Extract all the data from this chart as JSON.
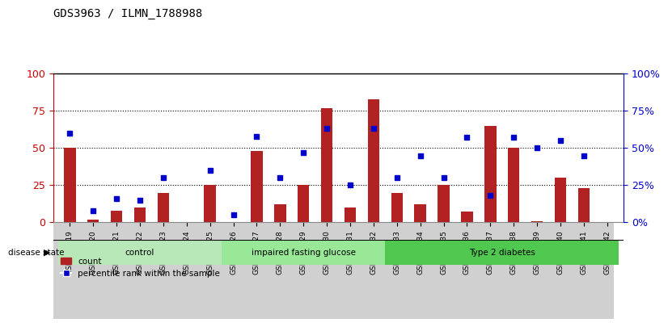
{
  "title": "GDS3963 / ILMN_1788988",
  "samples": [
    "GSM532819",
    "GSM532820",
    "GSM532821",
    "GSM532822",
    "GSM532823",
    "GSM532824",
    "GSM532825",
    "GSM532826",
    "GSM532827",
    "GSM532828",
    "GSM532829",
    "GSM532830",
    "GSM532831",
    "GSM532832",
    "GSM532833",
    "GSM532834",
    "GSM532835",
    "GSM532836",
    "GSM532837",
    "GSM532838",
    "GSM532839",
    "GSM532840",
    "GSM532841",
    "GSM532842"
  ],
  "counts": [
    50,
    2,
    8,
    10,
    20,
    0,
    25,
    0,
    48,
    12,
    25,
    77,
    10,
    83,
    20,
    12,
    25,
    7,
    65,
    50,
    1,
    30,
    23,
    0
  ],
  "percentiles": [
    60,
    8,
    16,
    15,
    30,
    0,
    35,
    5,
    58,
    30,
    47,
    63,
    25,
    63,
    30,
    45,
    30,
    57,
    18,
    57,
    50,
    55,
    45,
    0
  ],
  "bar_color": "#b22222",
  "dot_color": "#0000cc",
  "groups": [
    {
      "label": "control",
      "start": 0,
      "end": 7,
      "color": "#90ee90"
    },
    {
      "label": "impaired fasting glucose",
      "start": 7,
      "end": 14,
      "color": "#7fff7f"
    },
    {
      "label": "Type 2 diabetes",
      "start": 14,
      "end": 24,
      "color": "#32cd32"
    }
  ],
  "group_colors": [
    "#b8e8b8",
    "#9de89d",
    "#5ecf5e"
  ],
  "ylim_left": [
    0,
    100
  ],
  "ylim_right": [
    0,
    100
  ],
  "yticks": [
    0,
    25,
    50,
    75,
    100
  ],
  "grid_values": [
    25,
    50,
    75
  ],
  "bar_width": 0.5,
  "background_color": "#ffffff",
  "plot_bg": "#ffffff",
  "xlabel_color": "#cc0000",
  "ylabel_left_color": "#cc0000",
  "ylabel_right_color": "#0000cc",
  "tick_bg": "#d3d3d3"
}
